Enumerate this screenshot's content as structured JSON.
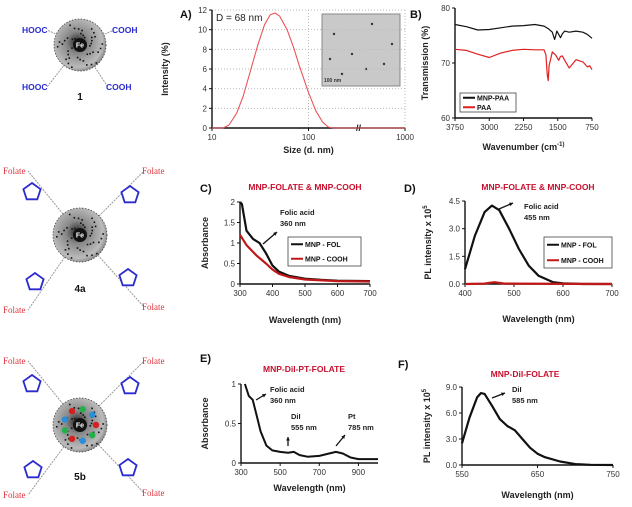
{
  "structures": [
    {
      "label": "1",
      "core": "Fe",
      "ligands": [
        "HOOC",
        "COOH",
        "HOOC",
        "COOH"
      ]
    },
    {
      "label": "4a",
      "core": "Fe",
      "ligands": [
        "Folate",
        "Folate",
        "Folate",
        "Folate"
      ]
    },
    {
      "label": "5b",
      "core": "Fe",
      "ligands": [
        "Folate",
        "Folate",
        "Folate",
        "Folate"
      ],
      "payload_colors": [
        "#d81e1e",
        "#22b04a",
        "#2a8fd8"
      ]
    }
  ],
  "chart_data": [
    {
      "panel": "A)",
      "type": "line",
      "title": "",
      "xlabel": "Size (d. nm)",
      "ylabel": "Intensity (%)",
      "xscale": "log",
      "xlim": [
        10,
        1000
      ],
      "ylim": [
        0,
        12
      ],
      "xticks": [
        10,
        100,
        1000
      ],
      "yticks": [
        0,
        2,
        4,
        6,
        8,
        10,
        12
      ],
      "grid": true,
      "axis_break": "//",
      "annotations": [
        [
          "D = 68 nm"
        ]
      ],
      "inset_scale_label": "100 nm",
      "series": [
        {
          "color": "#e8555a",
          "x": [
            10,
            13,
            15,
            18,
            21,
            25,
            30,
            35,
            40,
            45,
            50,
            60,
            70,
            80,
            100,
            120,
            140,
            160,
            180,
            1000
          ],
          "y": [
            0,
            0,
            0.3,
            1.5,
            3.2,
            5.8,
            8.5,
            10.5,
            11.5,
            11.7,
            11.4,
            10,
            8.2,
            6.4,
            3.6,
            1.7,
            0.6,
            0.1,
            0,
            0
          ]
        }
      ]
    },
    {
      "panel": "B)",
      "type": "line",
      "title": "",
      "xlabel": "Wavenumber (cm^-1)",
      "ylabel": "Transmission (%)",
      "xlim": [
        3750,
        750
      ],
      "ylim": [
        60,
        80
      ],
      "xticks": [
        3750,
        3000,
        2250,
        1500,
        750
      ],
      "yticks": [
        60,
        70,
        80
      ],
      "grid": false,
      "legend": "bottom-left",
      "series": [
        {
          "name": "MNP-PAA",
          "color": "#111111",
          "x": [
            3750,
            3500,
            3250,
            3000,
            2750,
            2500,
            2250,
            2000,
            1800,
            1700,
            1620,
            1570,
            1550,
            1520,
            1480,
            1440,
            1400,
            1350,
            1250,
            1100,
            950,
            850,
            750
          ],
          "y": [
            77,
            76.6,
            76,
            76.1,
            76.4,
            76.7,
            76.8,
            77,
            76.7,
            76.2,
            75.6,
            74.3,
            74.8,
            75.8,
            75.2,
            74.6,
            75.3,
            75.8,
            75.6,
            75.8,
            75.6,
            75.2,
            74.5
          ]
        },
        {
          "name": "PAA",
          "color": "#e02020",
          "x": [
            3750,
            3500,
            3250,
            3000,
            2750,
            2500,
            2250,
            2000,
            1800,
            1760,
            1730,
            1710,
            1690,
            1620,
            1550,
            1480,
            1440,
            1400,
            1300,
            1250,
            1180,
            1100,
            950,
            850,
            800,
            750
          ],
          "y": [
            72.5,
            72.3,
            71.6,
            71,
            71.8,
            72.3,
            72.5,
            72.4,
            72.4,
            71.5,
            68,
            66.8,
            69.5,
            72,
            71.5,
            70.5,
            71.2,
            71.3,
            69.8,
            69.1,
            69.8,
            70.6,
            70.2,
            69.3,
            69.5,
            68.8
          ]
        }
      ]
    },
    {
      "panel": "C)",
      "type": "line",
      "title": "MNP-FOLATE & MNP-COOH",
      "xlabel": "Wavelength (nm)",
      "ylabel": "Absorbance",
      "xlim": [
        300,
        700
      ],
      "ylim": [
        0,
        2
      ],
      "xticks": [
        300,
        400,
        500,
        600,
        700
      ],
      "yticks": [
        0,
        0.5,
        1,
        1.5,
        2
      ],
      "grid": false,
      "legend": "right",
      "annotations": [
        [
          "Folic acid",
          "360 nm"
        ]
      ],
      "series": [
        {
          "name": "MNP - FOL",
          "color": "#111111",
          "x": [
            300,
            306,
            320,
            340,
            360,
            380,
            400,
            420,
            450,
            500,
            550,
            600,
            700
          ],
          "y": [
            2,
            1.95,
            1.3,
            1.1,
            1.0,
            0.75,
            0.45,
            0.3,
            0.2,
            0.13,
            0.1,
            0.08,
            0.07
          ]
        },
        {
          "name": "MNP - COOH",
          "color": "#c01818",
          "x": [
            300,
            320,
            350,
            380,
            400,
            420,
            450,
            500,
            600,
            700
          ],
          "y": [
            1.2,
            0.95,
            0.7,
            0.5,
            0.35,
            0.25,
            0.17,
            0.11,
            0.07,
            0.06
          ]
        }
      ]
    },
    {
      "panel": "D)",
      "type": "line",
      "title": "MNP-FOLATE & MNP-COOH",
      "xlabel": "Wavelength (nm)",
      "ylabel": "PL intensity x 10^5",
      "xlim": [
        400,
        700
      ],
      "ylim": [
        0,
        4.5
      ],
      "xticks": [
        400,
        500,
        600,
        700
      ],
      "yticks": [
        "0.0",
        "1.5",
        "3.0",
        "4.5"
      ],
      "grid": false,
      "legend": "right",
      "annotations": [
        [
          "Folic acid",
          "455 nm"
        ]
      ],
      "series": [
        {
          "name": "MNP - FOL",
          "color": "#111111",
          "x": [
            400,
            420,
            440,
            455,
            470,
            490,
            510,
            530,
            550,
            580,
            600,
            640,
            700
          ],
          "y": [
            0.8,
            2.6,
            3.9,
            4.25,
            4.0,
            3.0,
            1.9,
            1.0,
            0.45,
            0.1,
            0.03,
            0,
            0
          ]
        },
        {
          "name": "MNP - COOH",
          "color": "#c01818",
          "x": [
            400,
            440,
            450,
            460,
            470,
            480,
            700
          ],
          "y": [
            0,
            0.02,
            0.06,
            0.1,
            0.06,
            0.02,
            0
          ]
        }
      ]
    },
    {
      "panel": "E)",
      "type": "line",
      "title": "MNP-DiI-PT-FOLATE",
      "xlabel": "Wavelength (nm)",
      "ylabel": "Absorbance",
      "xlim": [
        300,
        1000
      ],
      "ylim": [
        0,
        1
      ],
      "xticks": [
        300,
        500,
        700,
        900
      ],
      "yticks": [
        0,
        0.5,
        1
      ],
      "grid": false,
      "annotations": [
        [
          "Folic acid",
          "360 nm"
        ],
        [
          "DiI",
          "555 nm"
        ],
        [
          "Pt",
          "785 nm"
        ]
      ],
      "series": [
        {
          "color": "#111111",
          "x": [
            320,
            340,
            360,
            380,
            400,
            430,
            460,
            500,
            540,
            570,
            600,
            640,
            700,
            750,
            785,
            820,
            860,
            900,
            1000
          ],
          "y": [
            1,
            0.85,
            0.8,
            0.6,
            0.4,
            0.22,
            0.16,
            0.14,
            0.13,
            0.14,
            0.1,
            0.08,
            0.09,
            0.12,
            0.14,
            0.12,
            0.07,
            0.05,
            0.05
          ]
        }
      ]
    },
    {
      "panel": "F)",
      "type": "line",
      "title": "MNP-DiI-FOLATE",
      "xlabel": "Wavelength (nm)",
      "ylabel": "PL intensity x 10^5",
      "xlim": [
        550,
        750
      ],
      "ylim": [
        0,
        9
      ],
      "xticks": [
        550,
        650,
        750
      ],
      "yticks": [
        "0.0",
        "3.0",
        "6.0",
        "9.0"
      ],
      "grid": false,
      "annotations": [
        [
          "DiI",
          "585 nm"
        ]
      ],
      "series": [
        {
          "color": "#111111",
          "x": [
            550,
            560,
            570,
            575,
            580,
            590,
            600,
            610,
            620,
            630,
            640,
            650,
            660,
            680,
            700,
            720,
            750
          ],
          "y": [
            2.5,
            5.5,
            7.8,
            8.3,
            8.2,
            6.8,
            5.3,
            4.5,
            4.0,
            3.0,
            2.0,
            1.3,
            0.9,
            0.4,
            0.1,
            0.02,
            0
          ]
        }
      ]
    }
  ]
}
